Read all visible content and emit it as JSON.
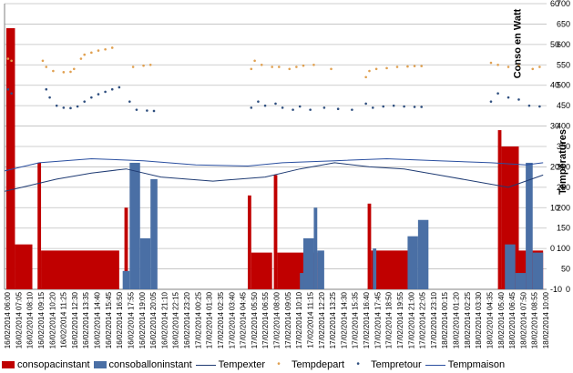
{
  "chart_data": {
    "type": "bar+line+scatter",
    "title": "",
    "ylabel_right_power": "Conso en Watt",
    "ylabel_right_temp": "Températures",
    "y_power_ticks": [
      0,
      50,
      100,
      150,
      200,
      250,
      300,
      350,
      400,
      450,
      500,
      550,
      600,
      650,
      700
    ],
    "y_temp_ticks": [
      -10,
      0,
      10,
      20,
      30,
      40,
      50,
      60
    ],
    "y_power_range": [
      0,
      700
    ],
    "y_temp_range": [
      -10,
      60
    ],
    "grid": true,
    "legend_position": "bottom",
    "x_labels": [
      "16/02/2014 06:00",
      "16/02/2014 07:05",
      "16/02/2014 08:10",
      "16/02/2014 09:15",
      "16/02/2014 10:20",
      "16/02/2014 11:25",
      "16/02/2014 12:30",
      "16/02/2014 13:35",
      "16/02/2014 14:40",
      "16/02/2014 15:45",
      "16/02/2014 16:50",
      "16/02/2014 17:55",
      "16/02/2014 19:00",
      "16/02/2014 20:05",
      "16/02/2014 21:10",
      "16/02/2014 22:15",
      "16/02/2014 23:20",
      "17/02/2014 00:25",
      "17/02/2014 01:30",
      "17/02/2014 02:35",
      "17/02/2014 03:40",
      "17/02/2014 04:45",
      "17/02/2014 05:50",
      "17/02/2014 06:55",
      "17/02/2014 08:00",
      "17/02/2014 09:05",
      "17/02/2014 10:10",
      "17/02/2014 11:15",
      "17/02/2014 12:20",
      "17/02/2014 13:25",
      "17/02/2014 14:30",
      "17/02/2014 15:35",
      "17/02/2014 16:40",
      "17/02/2014 17:45",
      "17/02/2014 18:50",
      "17/02/2014 19:55",
      "17/02/2014 21:00",
      "17/02/2014 22:05",
      "17/02/2014 23:10",
      "18/02/2014 00:15",
      "18/02/2014 01:20",
      "18/02/2014 02:25",
      "18/02/2014 03:30",
      "18/02/2014 04:35",
      "18/02/2014 05:40",
      "18/02/2014 06:45",
      "18/02/2014 07:50",
      "18/02/2014 08:55",
      "18/02/2014 10:00"
    ],
    "series": [
      {
        "name": "consopacinstant",
        "kind": "bar",
        "axis": "power",
        "color": "#c00000",
        "segments": [
          [
            0.5,
            3,
            640
          ],
          [
            3,
            8,
            110
          ],
          [
            9.5,
            10.5,
            310
          ],
          [
            10.5,
            33,
            95
          ],
          [
            34.5,
            35.5,
            200
          ],
          [
            70,
            71,
            230
          ],
          [
            71,
            77,
            90
          ],
          [
            77.5,
            78.5,
            280
          ],
          [
            78.5,
            90,
            90
          ],
          [
            104.5,
            105.5,
            210
          ],
          [
            105.5,
            117,
            95
          ],
          [
            142,
            143,
            390
          ],
          [
            143,
            148,
            350
          ],
          [
            148,
            155,
            95
          ]
        ]
      },
      {
        "name": "consoballoninstant",
        "kind": "bar",
        "axis": "power",
        "color": "#4a6fa5",
        "segments": [
          [
            34,
            36,
            45
          ],
          [
            36,
            39,
            310
          ],
          [
            39,
            42,
            125
          ],
          [
            42,
            44,
            270
          ],
          [
            85,
            86,
            40
          ],
          [
            86,
            89,
            125
          ],
          [
            89,
            90,
            200
          ],
          [
            90,
            92,
            95
          ],
          [
            106,
            107,
            100
          ],
          [
            116,
            119,
            130
          ],
          [
            119,
            122,
            170
          ],
          [
            144,
            147,
            110
          ],
          [
            147,
            150,
            40
          ],
          [
            150,
            152,
            310
          ],
          [
            152,
            155,
            90
          ]
        ]
      },
      {
        "name": "Tempexter",
        "kind": "line",
        "axis": "temp",
        "color": "#1f3b73",
        "points": [
          [
            0,
            14
          ],
          [
            5,
            15
          ],
          [
            10,
            16
          ],
          [
            15,
            17
          ],
          [
            25,
            18.5
          ],
          [
            35,
            19.5
          ],
          [
            45,
            17.5
          ],
          [
            60,
            16.5
          ],
          [
            75,
            17.5
          ],
          [
            85,
            19.5
          ],
          [
            95,
            21
          ],
          [
            105,
            20
          ],
          [
            115,
            19.5
          ],
          [
            125,
            18
          ],
          [
            135,
            16.5
          ],
          [
            145,
            15
          ],
          [
            155,
            18
          ]
        ]
      },
      {
        "name": "Tempdepart",
        "kind": "scatter",
        "axis": "power",
        "color": "#e0a050",
        "points": [
          [
            1,
            565
          ],
          [
            2,
            560
          ],
          [
            11,
            560
          ],
          [
            12,
            545
          ],
          [
            14,
            535
          ],
          [
            17,
            532
          ],
          [
            19,
            533
          ],
          [
            20,
            540
          ],
          [
            22,
            565
          ],
          [
            23,
            575
          ],
          [
            25,
            580
          ],
          [
            27,
            585
          ],
          [
            29,
            588
          ],
          [
            31,
            592
          ],
          [
            37,
            545
          ],
          [
            40,
            548
          ],
          [
            42,
            550
          ],
          [
            71,
            540
          ],
          [
            72,
            560
          ],
          [
            74,
            550
          ],
          [
            77,
            545
          ],
          [
            79,
            545
          ],
          [
            82,
            540
          ],
          [
            84,
            545
          ],
          [
            86,
            548
          ],
          [
            89,
            550
          ],
          [
            94,
            540
          ],
          [
            104,
            520
          ],
          [
            105,
            535
          ],
          [
            107,
            540
          ],
          [
            110,
            542
          ],
          [
            113,
            545
          ],
          [
            116,
            546
          ],
          [
            118,
            547
          ],
          [
            120,
            547
          ],
          [
            140,
            555
          ],
          [
            142,
            550
          ],
          [
            145,
            545
          ],
          [
            148,
            548
          ],
          [
            152,
            540
          ],
          [
            154,
            545
          ]
        ]
      },
      {
        "name": "Tempretour",
        "kind": "scatter",
        "axis": "power",
        "color": "#2f4f7f",
        "points": [
          [
            1,
            490
          ],
          [
            2,
            480
          ],
          [
            12,
            490
          ],
          [
            13,
            470
          ],
          [
            15,
            450
          ],
          [
            17,
            445
          ],
          [
            19,
            444
          ],
          [
            21,
            448
          ],
          [
            23,
            460
          ],
          [
            25,
            470
          ],
          [
            27,
            478
          ],
          [
            29,
            484
          ],
          [
            31,
            490
          ],
          [
            33,
            495
          ],
          [
            36,
            460
          ],
          [
            38,
            440
          ],
          [
            41,
            438
          ],
          [
            43,
            437
          ],
          [
            71,
            445
          ],
          [
            73,
            460
          ],
          [
            75,
            450
          ],
          [
            78,
            455
          ],
          [
            80,
            445
          ],
          [
            83,
            440
          ],
          [
            85,
            448
          ],
          [
            88,
            440
          ],
          [
            92,
            445
          ],
          [
            96,
            442
          ],
          [
            100,
            440
          ],
          [
            104,
            455
          ],
          [
            106,
            445
          ],
          [
            109,
            448
          ],
          [
            112,
            450
          ],
          [
            115,
            448
          ],
          [
            118,
            447
          ],
          [
            120,
            447
          ],
          [
            140,
            460
          ],
          [
            142,
            480
          ],
          [
            145,
            470
          ],
          [
            148,
            465
          ],
          [
            151,
            450
          ],
          [
            154,
            448
          ]
        ]
      },
      {
        "name": "Tempmaison",
        "kind": "line",
        "axis": "temp",
        "color": "#2a4fa0",
        "points": [
          [
            0,
            19
          ],
          [
            10,
            21
          ],
          [
            25,
            22
          ],
          [
            40,
            21.5
          ],
          [
            55,
            20.5
          ],
          [
            70,
            20.2
          ],
          [
            80,
            21
          ],
          [
            95,
            21.5
          ],
          [
            110,
            22
          ],
          [
            125,
            21.5
          ],
          [
            140,
            21
          ],
          [
            150,
            20.5
          ],
          [
            155,
            21
          ]
        ]
      }
    ]
  },
  "legend": {
    "items": [
      {
        "label": "consopacinstant"
      },
      {
        "label": "consoballoninstant"
      },
      {
        "label": "Tempexter"
      },
      {
        "label": "Tempdepart"
      },
      {
        "label": "Tempretour"
      },
      {
        "label": "Tempmaison"
      }
    ]
  },
  "colors": {
    "pac": "#c00000",
    "ballon": "#4a6fa5",
    "tempexter": "#1f3b73",
    "tempdepart": "#e0a050",
    "tempretour": "#2f4f7f",
    "tempmaison": "#2a4fa0"
  }
}
